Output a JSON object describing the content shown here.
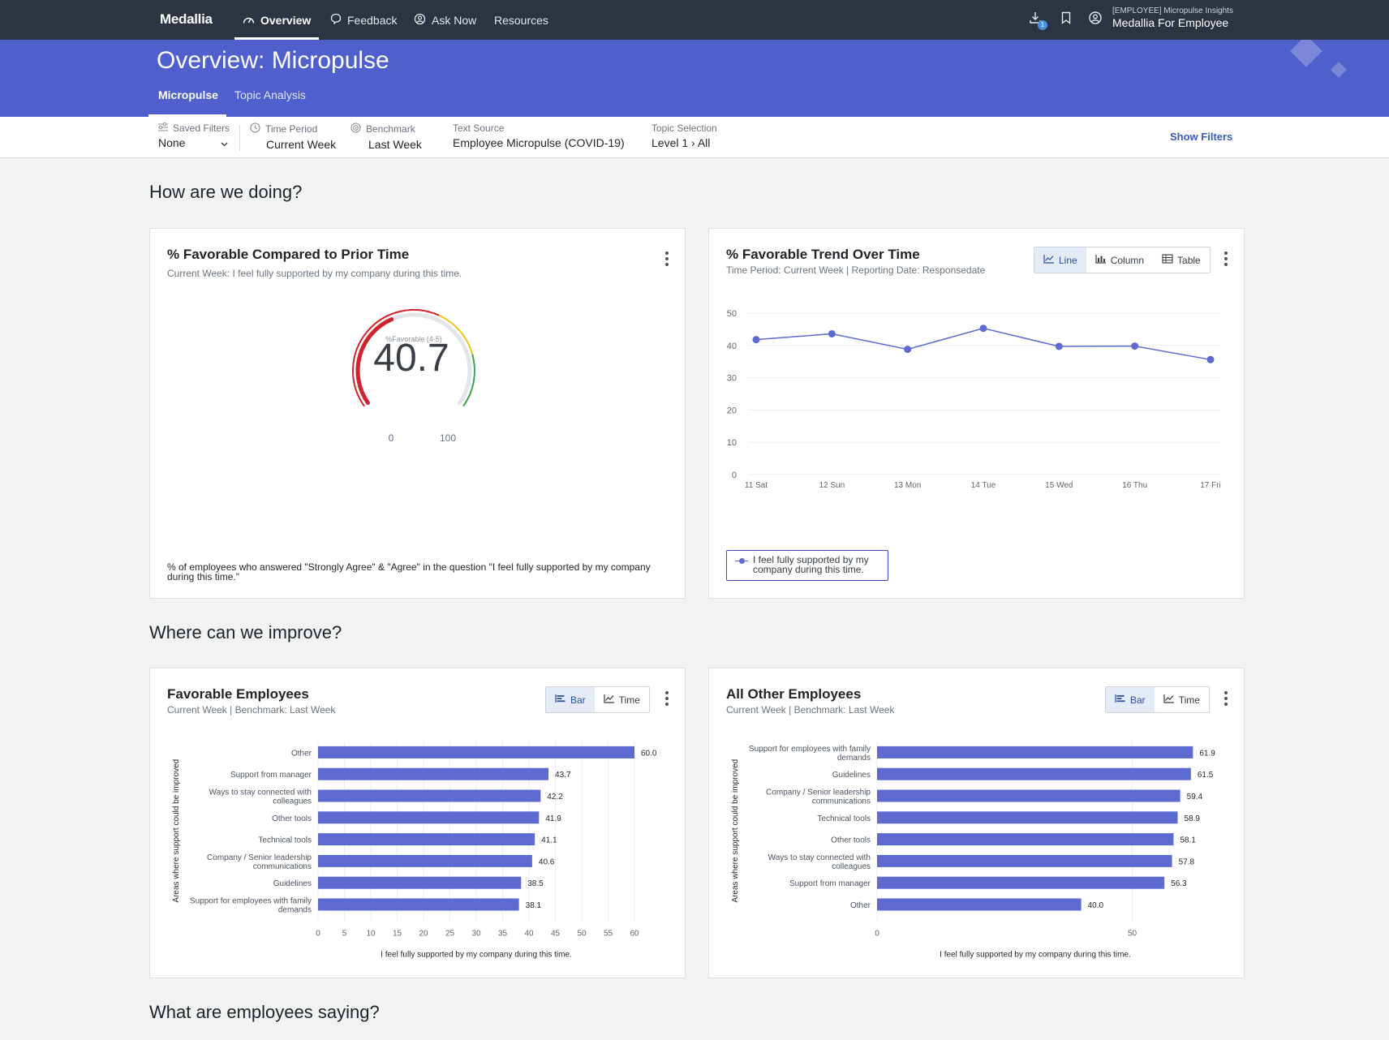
{
  "nav": {
    "logo": "Medallia",
    "items": [
      {
        "label": "Overview"
      },
      {
        "label": "Feedback"
      },
      {
        "label": "Ask Now"
      },
      {
        "label": "Resources"
      }
    ],
    "download_badge": "1",
    "account_sub": "[EMPLOYEE] Micropulse Insights",
    "account_main": "Medallia For Employee"
  },
  "header": {
    "title": "Overview: Micropulse",
    "tabs": [
      "Micropulse",
      "Topic Analysis"
    ]
  },
  "filters": {
    "saved": {
      "label": "Saved Filters",
      "value": "None"
    },
    "time": {
      "label": "Time Period",
      "value": "Current Week"
    },
    "benchmark": {
      "label": "Benchmark",
      "value": "Last Week"
    },
    "text_source": {
      "label": "Text Source",
      "value": "Employee Micropulse (COVID-19)"
    },
    "topic": {
      "label": "Topic Selection",
      "value": "Level 1 › All"
    },
    "show_filters": "Show Filters"
  },
  "sections": {
    "doing": "How are we doing?",
    "improve": "Where can we improve?",
    "saying": "What are employees saying?"
  },
  "card_prior": {
    "title": "% Favorable Compared to Prior Time",
    "subtitle": "Current Week: I feel fully supported by my company during this time.",
    "footnote": "% of employees who answered \"Strongly Agree\" & \"Agree\" in the question \"I feel fully supported by my company during this time.\""
  },
  "card_trend": {
    "title": "% Favorable Trend Over Time",
    "subtitle": "Time Period: Current Week | Reporting Date: Responsedate",
    "buttons": [
      "Line",
      "Column",
      "Table"
    ],
    "legend": "I feel fully supported by my company during this time."
  },
  "card_fav": {
    "title": "Favorable Employees",
    "subtitle": "Current Week | Benchmark: Last Week",
    "buttons": [
      "Bar",
      "Time"
    ]
  },
  "card_other": {
    "title": "All Other Employees",
    "subtitle": "Current Week | Benchmark: Last Week",
    "buttons": [
      "Bar",
      "Time"
    ]
  },
  "colors": {
    "nav_bg": "#2b3440",
    "header_bg": "#4f5fcc",
    "series": "#5d6bd0",
    "gauge_red": "#d0232e",
    "gauge_yellow": "#f0c419",
    "gauge_green": "#3aa64a"
  },
  "chart_data": [
    {
      "type": "gauge",
      "label": "%Favorable (4-5)",
      "value": 40.7,
      "min_label": "0",
      "max_label": "100",
      "range": [
        0,
        100
      ]
    },
    {
      "type": "line",
      "x": [
        "11 Sat",
        "12 Sun",
        "13 Mon",
        "14 Tue",
        "15 Wed",
        "16 Thu",
        "17 Fri"
      ],
      "series": [
        {
          "name": "I feel fully supported by my company during this time.",
          "values": [
            41.8,
            43.6,
            38.8,
            45.3,
            39.7,
            39.8,
            35.6
          ]
        }
      ],
      "ylim": [
        0,
        50
      ],
      "yticks": [
        0,
        10,
        20,
        30,
        40,
        50
      ],
      "grid": true,
      "legend": "bottom-left"
    },
    {
      "type": "bar",
      "orientation": "horizontal",
      "categories": [
        "Other",
        "Support from manager",
        "Ways to stay connected with colleagues",
        "Other tools",
        "Technical tools",
        "Company / Senior leadership communications",
        "Guidelines",
        "Support for employees with family demands"
      ],
      "values": [
        60.0,
        43.7,
        42.2,
        41.9,
        41.1,
        40.6,
        38.5,
        38.1
      ],
      "value_labels": [
        "60.0",
        "43.7",
        "42.2",
        "41.9",
        "41.1",
        "40.6",
        "38.5",
        "38.1"
      ],
      "xlabel": "I feel fully supported by my company during this time.",
      "ylabel": "Areas where support could be improved",
      "xlim": [
        0,
        60
      ],
      "xticks": [
        0,
        5,
        10,
        15,
        20,
        25,
        30,
        35,
        40,
        45,
        50,
        55,
        60
      ]
    },
    {
      "type": "bar",
      "orientation": "horizontal",
      "categories": [
        "Support for employees with family demands",
        "Guidelines",
        "Company / Senior leadership communications",
        "Technical tools",
        "Other tools",
        "Ways to stay connected with colleagues",
        "Support from manager",
        "Other"
      ],
      "values": [
        61.9,
        61.5,
        59.4,
        58.9,
        58.1,
        57.8,
        56.3,
        40.0
      ],
      "value_labels": [
        "61.9",
        "61.5",
        "59.4",
        "58.9",
        "58.1",
        "57.8",
        "56.3",
        "40.0"
      ],
      "xlabel": "I feel fully supported by my company during this time.",
      "ylabel": "Areas where support could be improved",
      "xlim": [
        0,
        62
      ],
      "xticks": [
        0,
        50
      ]
    }
  ]
}
